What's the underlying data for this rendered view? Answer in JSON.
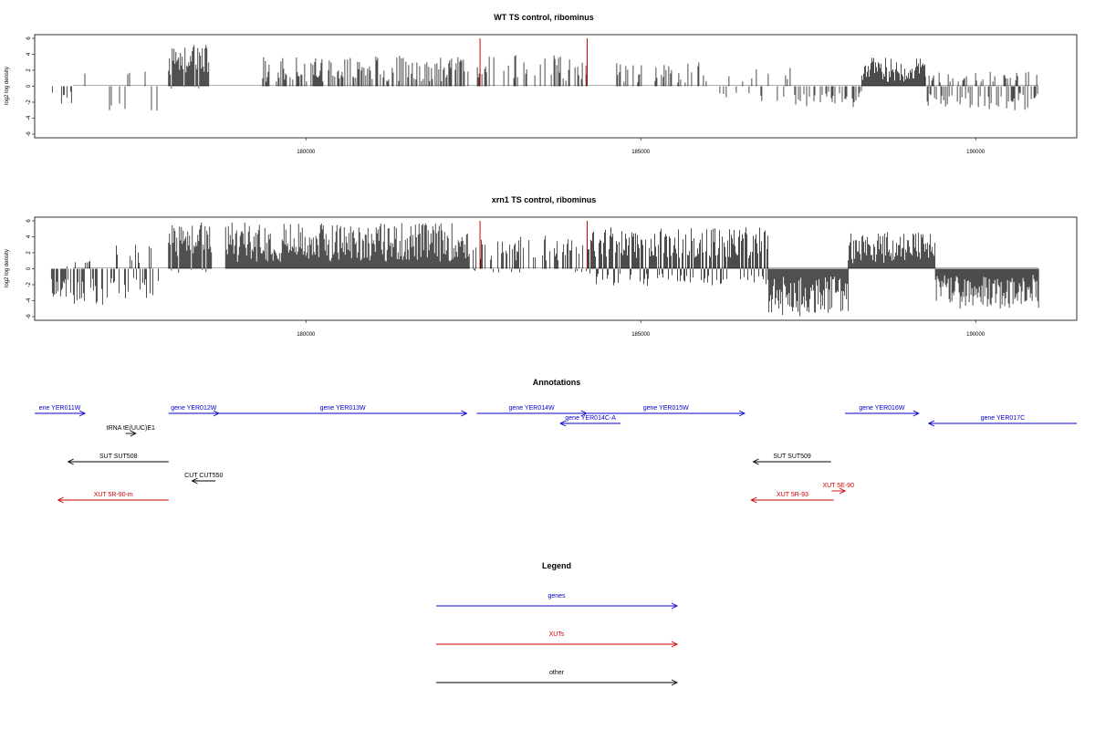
{
  "chart_data": [
    {
      "type": "bar",
      "title": "WT TS control, ribominus",
      "ylabel": "log2 log density",
      "ylim": [
        -6,
        6
      ],
      "yticks": [
        "6",
        "4",
        "2",
        "0",
        "-2",
        "-4",
        "-6"
      ],
      "xlim": [
        175950,
        191510
      ],
      "xticks": [
        "180000",
        "185000",
        "190000"
      ],
      "grid": false,
      "marked_positions": [
        182600,
        184200
      ],
      "marker_color": "#cc0000",
      "bar_color": "#000000",
      "segments": [
        {
          "start": 176200,
          "end": 176500,
          "min": -2.3,
          "max": 0.2,
          "density": 0.02
        },
        {
          "start": 176700,
          "end": 177800,
          "min": -3.2,
          "max": 2.4,
          "density": 0.015
        },
        {
          "start": 177950,
          "end": 178550,
          "min": -0.3,
          "max": 5.2,
          "density": 0.1
        },
        {
          "start": 179300,
          "end": 182450,
          "min": 0,
          "max": 3.8,
          "density": 0.045
        },
        {
          "start": 182450,
          "end": 184200,
          "min": 0,
          "max": 4.0,
          "density": 0.03
        },
        {
          "start": 184600,
          "end": 186000,
          "min": 0,
          "max": 3.0,
          "density": 0.03
        },
        {
          "start": 186100,
          "end": 187300,
          "min": -2.2,
          "max": 2.4,
          "density": 0.02
        },
        {
          "start": 187300,
          "end": 188300,
          "min": -2.6,
          "max": 0,
          "density": 0.04
        },
        {
          "start": 188300,
          "end": 189250,
          "min": 0,
          "max": 3.6,
          "density": 0.1
        },
        {
          "start": 189250,
          "end": 190950,
          "min": -3.1,
          "max": 1.8,
          "density": 0.06
        }
      ]
    },
    {
      "type": "bar",
      "title": "xrn1 TS control, ribominus",
      "ylabel": "log2 log density",
      "ylim": [
        -6,
        6
      ],
      "yticks": [
        "6",
        "4",
        "2",
        "0",
        "-2",
        "-4",
        "-6"
      ],
      "xlim": [
        175950,
        191510
      ],
      "xticks": [
        "180000",
        "185000",
        "190000"
      ],
      "grid": false,
      "marked_positions": [
        182600,
        184200
      ],
      "marker_color": "#cc0000",
      "bar_color": "#000000",
      "segments": [
        {
          "start": 176200,
          "end": 177100,
          "min": -4.5,
          "max": 1.0,
          "density": 0.06
        },
        {
          "start": 177100,
          "end": 177800,
          "min": -3.8,
          "max": 3.0,
          "density": 0.04
        },
        {
          "start": 177950,
          "end": 178600,
          "min": -0.5,
          "max": 5.8,
          "density": 0.2
        },
        {
          "start": 178800,
          "end": 182450,
          "min": 0,
          "max": 5.8,
          "density": 0.16
        },
        {
          "start": 182500,
          "end": 184200,
          "min": -0.5,
          "max": 4.2,
          "density": 0.05
        },
        {
          "start": 184200,
          "end": 186900,
          "min": -2.2,
          "max": 5.2,
          "density": 0.1
        },
        {
          "start": 186900,
          "end": 188100,
          "min": -6.0,
          "max": 0,
          "density": 0.2
        },
        {
          "start": 188100,
          "end": 189400,
          "min": 0,
          "max": 4.6,
          "density": 0.14
        },
        {
          "start": 189400,
          "end": 190950,
          "min": -5.0,
          "max": 0,
          "density": 0.2
        }
      ]
    }
  ],
  "annotations": {
    "title": "Annotations",
    "features": [
      {
        "label": "ene YER011W",
        "color": "#0000cc",
        "start": 175950,
        "end": 176700,
        "dir": "right",
        "row": 0
      },
      {
        "label": "gene YER012W",
        "color": "#0000cc",
        "start": 177950,
        "end": 178700,
        "dir": "right",
        "row": 0
      },
      {
        "label": "gene YER013W",
        "color": "#0000cc",
        "start": 178700,
        "end": 182400,
        "dir": "right",
        "row": 0
      },
      {
        "label": "gene YER014W",
        "color": "#0000cc",
        "start": 182550,
        "end": 184190,
        "dir": "right",
        "row": 0
      },
      {
        "label": "gene YER015W",
        "color": "#0000cc",
        "start": 184200,
        "end": 186550,
        "dir": "right",
        "row": 0
      },
      {
        "label": "gene YER016W",
        "color": "#0000cc",
        "start": 188050,
        "end": 189150,
        "dir": "right",
        "row": 0
      },
      {
        "label": "gene YER014C-A",
        "color": "#0000cc",
        "start": 183800,
        "end": 184700,
        "dir": "left",
        "row": 1
      },
      {
        "label": "gene YER017C",
        "color": "#0000cc",
        "start": 189300,
        "end": 191510,
        "dir": "left",
        "row": 1
      },
      {
        "label": "tRNA tE(UUC)E1",
        "color": "#000000",
        "start": 177310,
        "end": 177460,
        "dir": "right",
        "row": 2
      },
      {
        "label": "SUT SUT508",
        "color": "#000000",
        "start": 176450,
        "end": 177950,
        "dir": "left",
        "row": 3
      },
      {
        "label": "SUT SUT509",
        "color": "#000000",
        "start": 186680,
        "end": 187840,
        "dir": "left",
        "row": 3
      },
      {
        "label": "CUT CUT550",
        "color": "#000000",
        "start": 178300,
        "end": 178650,
        "dir": "left",
        "row": 4
      },
      {
        "label": "XUT 5E-90",
        "color": "#cc0000",
        "start": 187850,
        "end": 188050,
        "dir": "right",
        "row": 5
      },
      {
        "label": "XUT 5R-90-m",
        "color": "#cc0000",
        "start": 176300,
        "end": 177950,
        "dir": "left",
        "row": 6
      },
      {
        "label": "XUT 5R-93",
        "color": "#cc0000",
        "start": 186650,
        "end": 187880,
        "dir": "left",
        "row": 6
      }
    ]
  },
  "legend": {
    "title": "Legend",
    "items": [
      {
        "label": "genes",
        "color": "#0000cc"
      },
      {
        "label": "XUTs",
        "color": "#cc0000"
      },
      {
        "label": "other",
        "color": "#000000"
      }
    ]
  }
}
